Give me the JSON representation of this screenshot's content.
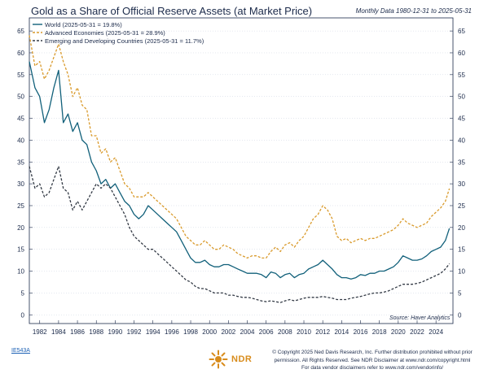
{
  "header": {
    "title": "Gold as a Share of Official Reserve Assets (at Market Price)",
    "subtitle": "Monthly Data 1980-12-31 to 2025-05-31"
  },
  "footer": {
    "chart_id": "IE543A",
    "logo_text": "NDR",
    "copyright_line1": "© Copyright 2025 Ned Davis Research, Inc. Further distribution prohibited without prior",
    "copyright_line2": "permission. All Rights Reserved. See NDR Disclaimer at www.ndr.com/copyright.html",
    "copyright_line3": "For data vendor disclaimers refer to www.ndr.com/vendorinfo/"
  },
  "colors": {
    "world": "#11607a",
    "advanced": "#d99a2b",
    "emerging": "#333a45",
    "text": "#1b2a4a",
    "logo": "#d88c1c"
  },
  "chart_data": {
    "type": "line",
    "title": "Gold as a Share of Official Reserve Assets (at Market Price)",
    "source": "Source:  Haver Analytics",
    "xlim": [
      1980.9,
      2025.8
    ],
    "ylim": [
      -2,
      68
    ],
    "y_ticks": [
      0,
      5,
      10,
      15,
      20,
      25,
      30,
      35,
      40,
      45,
      50,
      55,
      60,
      65
    ],
    "x_ticks": [
      1982,
      1984,
      1986,
      1988,
      1990,
      1992,
      1994,
      1996,
      1998,
      2000,
      2002,
      2004,
      2006,
      2008,
      2010,
      2012,
      2014,
      2016,
      2018,
      2020,
      2022,
      2024
    ],
    "x_tick_labels": [
      "1982",
      "1984",
      "1986",
      "1988",
      "1990",
      "1992",
      "1994",
      "1996",
      "1998",
      "2000",
      "2002",
      "2004",
      "2006",
      "2008",
      "2010",
      "2012",
      "2014",
      "2016",
      "2018",
      "2020",
      "2022",
      "2024"
    ],
    "grid": true,
    "legend_position": "top-left",
    "x": [
      1980.9,
      1981.5,
      1982.0,
      1982.5,
      1983.0,
      1983.5,
      1984.0,
      1984.5,
      1985.0,
      1985.5,
      1986.0,
      1986.5,
      1987.0,
      1987.5,
      1988.0,
      1988.5,
      1989.0,
      1989.5,
      1990.0,
      1990.5,
      1991.0,
      1991.5,
      1992.0,
      1992.5,
      1993.0,
      1993.5,
      1994.0,
      1994.5,
      1995.0,
      1995.5,
      1996.0,
      1996.5,
      1997.0,
      1997.5,
      1998.0,
      1998.5,
      1999.0,
      1999.5,
      2000.0,
      2000.5,
      2001.0,
      2001.5,
      2002.0,
      2002.5,
      2003.0,
      2003.5,
      2004.0,
      2004.5,
      2005.0,
      2005.5,
      2006.0,
      2006.5,
      2007.0,
      2007.5,
      2008.0,
      2008.5,
      2009.0,
      2009.5,
      2010.0,
      2010.5,
      2011.0,
      2011.5,
      2012.0,
      2012.5,
      2013.0,
      2013.5,
      2014.0,
      2014.5,
      2015.0,
      2015.5,
      2016.0,
      2016.5,
      2017.0,
      2017.5,
      2018.0,
      2018.5,
      2019.0,
      2019.5,
      2020.0,
      2020.5,
      2021.0,
      2021.5,
      2022.0,
      2022.5,
      2023.0,
      2023.5,
      2024.0,
      2024.5,
      2025.0,
      2025.42
    ],
    "series": [
      {
        "name": "World (2025-05-31 = 19.8%)",
        "color": "#11607a",
        "style": "solid",
        "values": [
          58,
          52,
          50,
          44,
          47,
          52,
          56,
          44,
          46,
          42,
          44,
          40,
          39,
          35,
          33,
          30,
          31,
          29,
          30,
          28,
          26,
          25,
          23,
          22,
          23,
          25,
          24,
          23,
          22,
          21,
          20,
          19,
          17,
          15,
          13,
          12,
          12,
          12.5,
          11.5,
          11,
          11,
          11.5,
          11.5,
          11,
          10.5,
          10,
          9.5,
          9.5,
          9.5,
          9.2,
          8.5,
          9.8,
          9.5,
          8.5,
          9.2,
          9.5,
          8.5,
          9.2,
          9.5,
          10.5,
          11,
          11.5,
          12.5,
          11.5,
          10.5,
          9.2,
          8.5,
          8.5,
          8.2,
          8.5,
          9.2,
          9.0,
          9.5,
          9.5,
          10,
          10,
          10.5,
          11,
          12,
          13.5,
          13,
          12.5,
          12.5,
          12.8,
          13.5,
          14.5,
          15,
          15.5,
          17,
          19.8
        ]
      },
      {
        "name": "Advanced Economies (2025-05-31 = 28.9%)",
        "color": "#d99a2b",
        "style": "dashed",
        "values": [
          64,
          57,
          58,
          54,
          56,
          59,
          62,
          58,
          55,
          50,
          52,
          48,
          47,
          41,
          41,
          37,
          38,
          35,
          36,
          33,
          30,
          29,
          27,
          27,
          27,
          28,
          27,
          26,
          25,
          24,
          23,
          22,
          20,
          18,
          17,
          16,
          16,
          17,
          16,
          15,
          15,
          16,
          15.5,
          15,
          14,
          13.5,
          13,
          13.5,
          13.5,
          13,
          13,
          14.5,
          15.5,
          14.5,
          16,
          16.5,
          15.5,
          17,
          18,
          20,
          22,
          23,
          25,
          24,
          22,
          18,
          17,
          17.5,
          16.5,
          17,
          17.5,
          17,
          17.5,
          17.5,
          18,
          18.5,
          19,
          19.5,
          20.5,
          22,
          21,
          20.5,
          20,
          20.5,
          21,
          22.5,
          23.5,
          24.5,
          26,
          28.9
        ]
      },
      {
        "name": "Emerging and Developing Countries (2025-05-31 = 11.7%)",
        "color": "#333a45",
        "style": "dashed",
        "values": [
          34,
          29,
          30,
          27,
          28,
          31,
          34,
          29,
          28,
          24,
          26,
          24,
          26,
          28,
          30,
          29,
          30,
          29,
          27,
          25,
          23,
          20,
          18,
          17,
          16,
          15,
          15,
          14,
          13,
          12,
          11,
          10,
          9,
          8,
          7.5,
          6.5,
          6,
          6,
          5.5,
          5,
          5,
          5,
          4.5,
          4.5,
          4.2,
          4,
          4,
          3.8,
          3.5,
          3.2,
          3.0,
          3.2,
          3.0,
          2.8,
          3.2,
          3.5,
          3.2,
          3.5,
          3.8,
          4.0,
          4.0,
          4.0,
          4.2,
          4.0,
          3.8,
          3.5,
          3.5,
          3.5,
          3.8,
          4.0,
          4.2,
          4.5,
          4.8,
          5.0,
          5.0,
          5.2,
          5.5,
          6.0,
          6.5,
          7.0,
          7.0,
          7.0,
          7.2,
          7.5,
          8.0,
          8.5,
          9.0,
          9.5,
          10.5,
          11.7
        ]
      }
    ]
  }
}
